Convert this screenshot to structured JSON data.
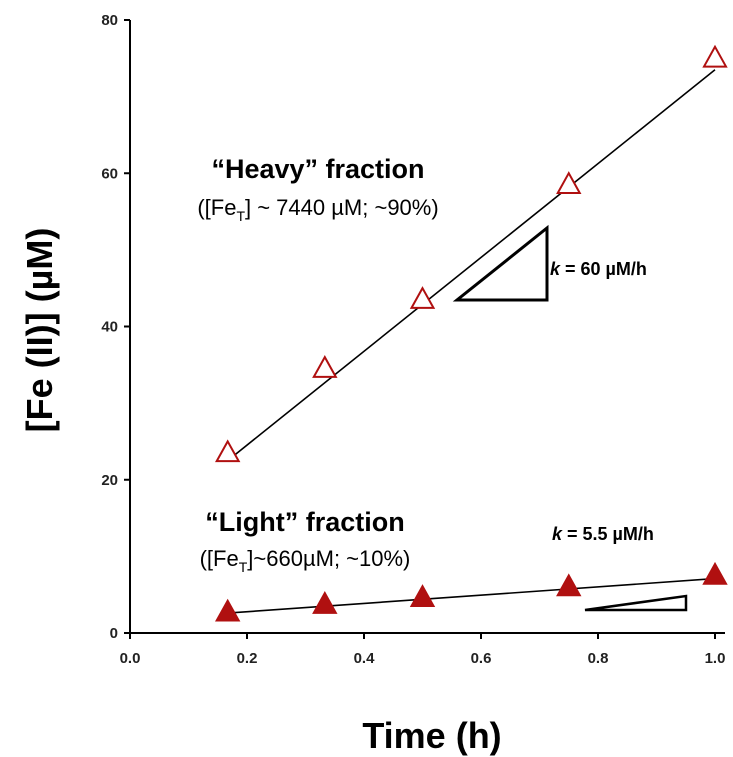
{
  "chart_data": {
    "type": "scatter",
    "title": "",
    "xlabel": "Time (h)",
    "ylabel": "[Fe (II)] (µM)",
    "xlim": [
      0.0,
      1.0
    ],
    "ylim": [
      0,
      80
    ],
    "xticks": [
      "0.0",
      "0.2",
      "0.4",
      "0.6",
      "0.8",
      "1.0"
    ],
    "yticks": [
      "0",
      "20",
      "40",
      "60",
      "80"
    ],
    "grid": false,
    "series": [
      {
        "key": "heavy",
        "marker": "open-triangle",
        "color": "#b01010",
        "x": [
          0.167,
          0.333,
          0.5,
          0.75,
          1.0
        ],
        "y": [
          23.5,
          34.5,
          43.5,
          58.5,
          75
        ],
        "fit": {
          "x": [
            0.167,
            1.0
          ],
          "y": [
            22.5,
            73.5
          ]
        }
      },
      {
        "key": "light",
        "marker": "filled-triangle",
        "color": "#b01010",
        "x": [
          0.167,
          0.333,
          0.5,
          0.75,
          1.0
        ],
        "y": [
          2.7,
          3.7,
          4.6,
          6.0,
          7.5
        ],
        "fit": {
          "x": [
            0.167,
            1.0
          ],
          "y": [
            2.6,
            7.1
          ]
        }
      }
    ],
    "annotations": {
      "heavy_title": "“Heavy” fraction",
      "heavy_sub_pre": "([Fe",
      "heavy_sub_subscript": "T",
      "heavy_sub_post": "] ~ 7440 µM; ~90%)",
      "heavy_rate_k": "k",
      "heavy_rate_rest": " = 60 µM/h",
      "light_title": "“Light” fraction",
      "light_sub_pre": "([Fe",
      "light_sub_subscript": "T",
      "light_sub_post": "]~660µM; ~10%)",
      "light_rate_k": "k",
      "light_rate_rest": " = 5.5 µM/h"
    }
  }
}
